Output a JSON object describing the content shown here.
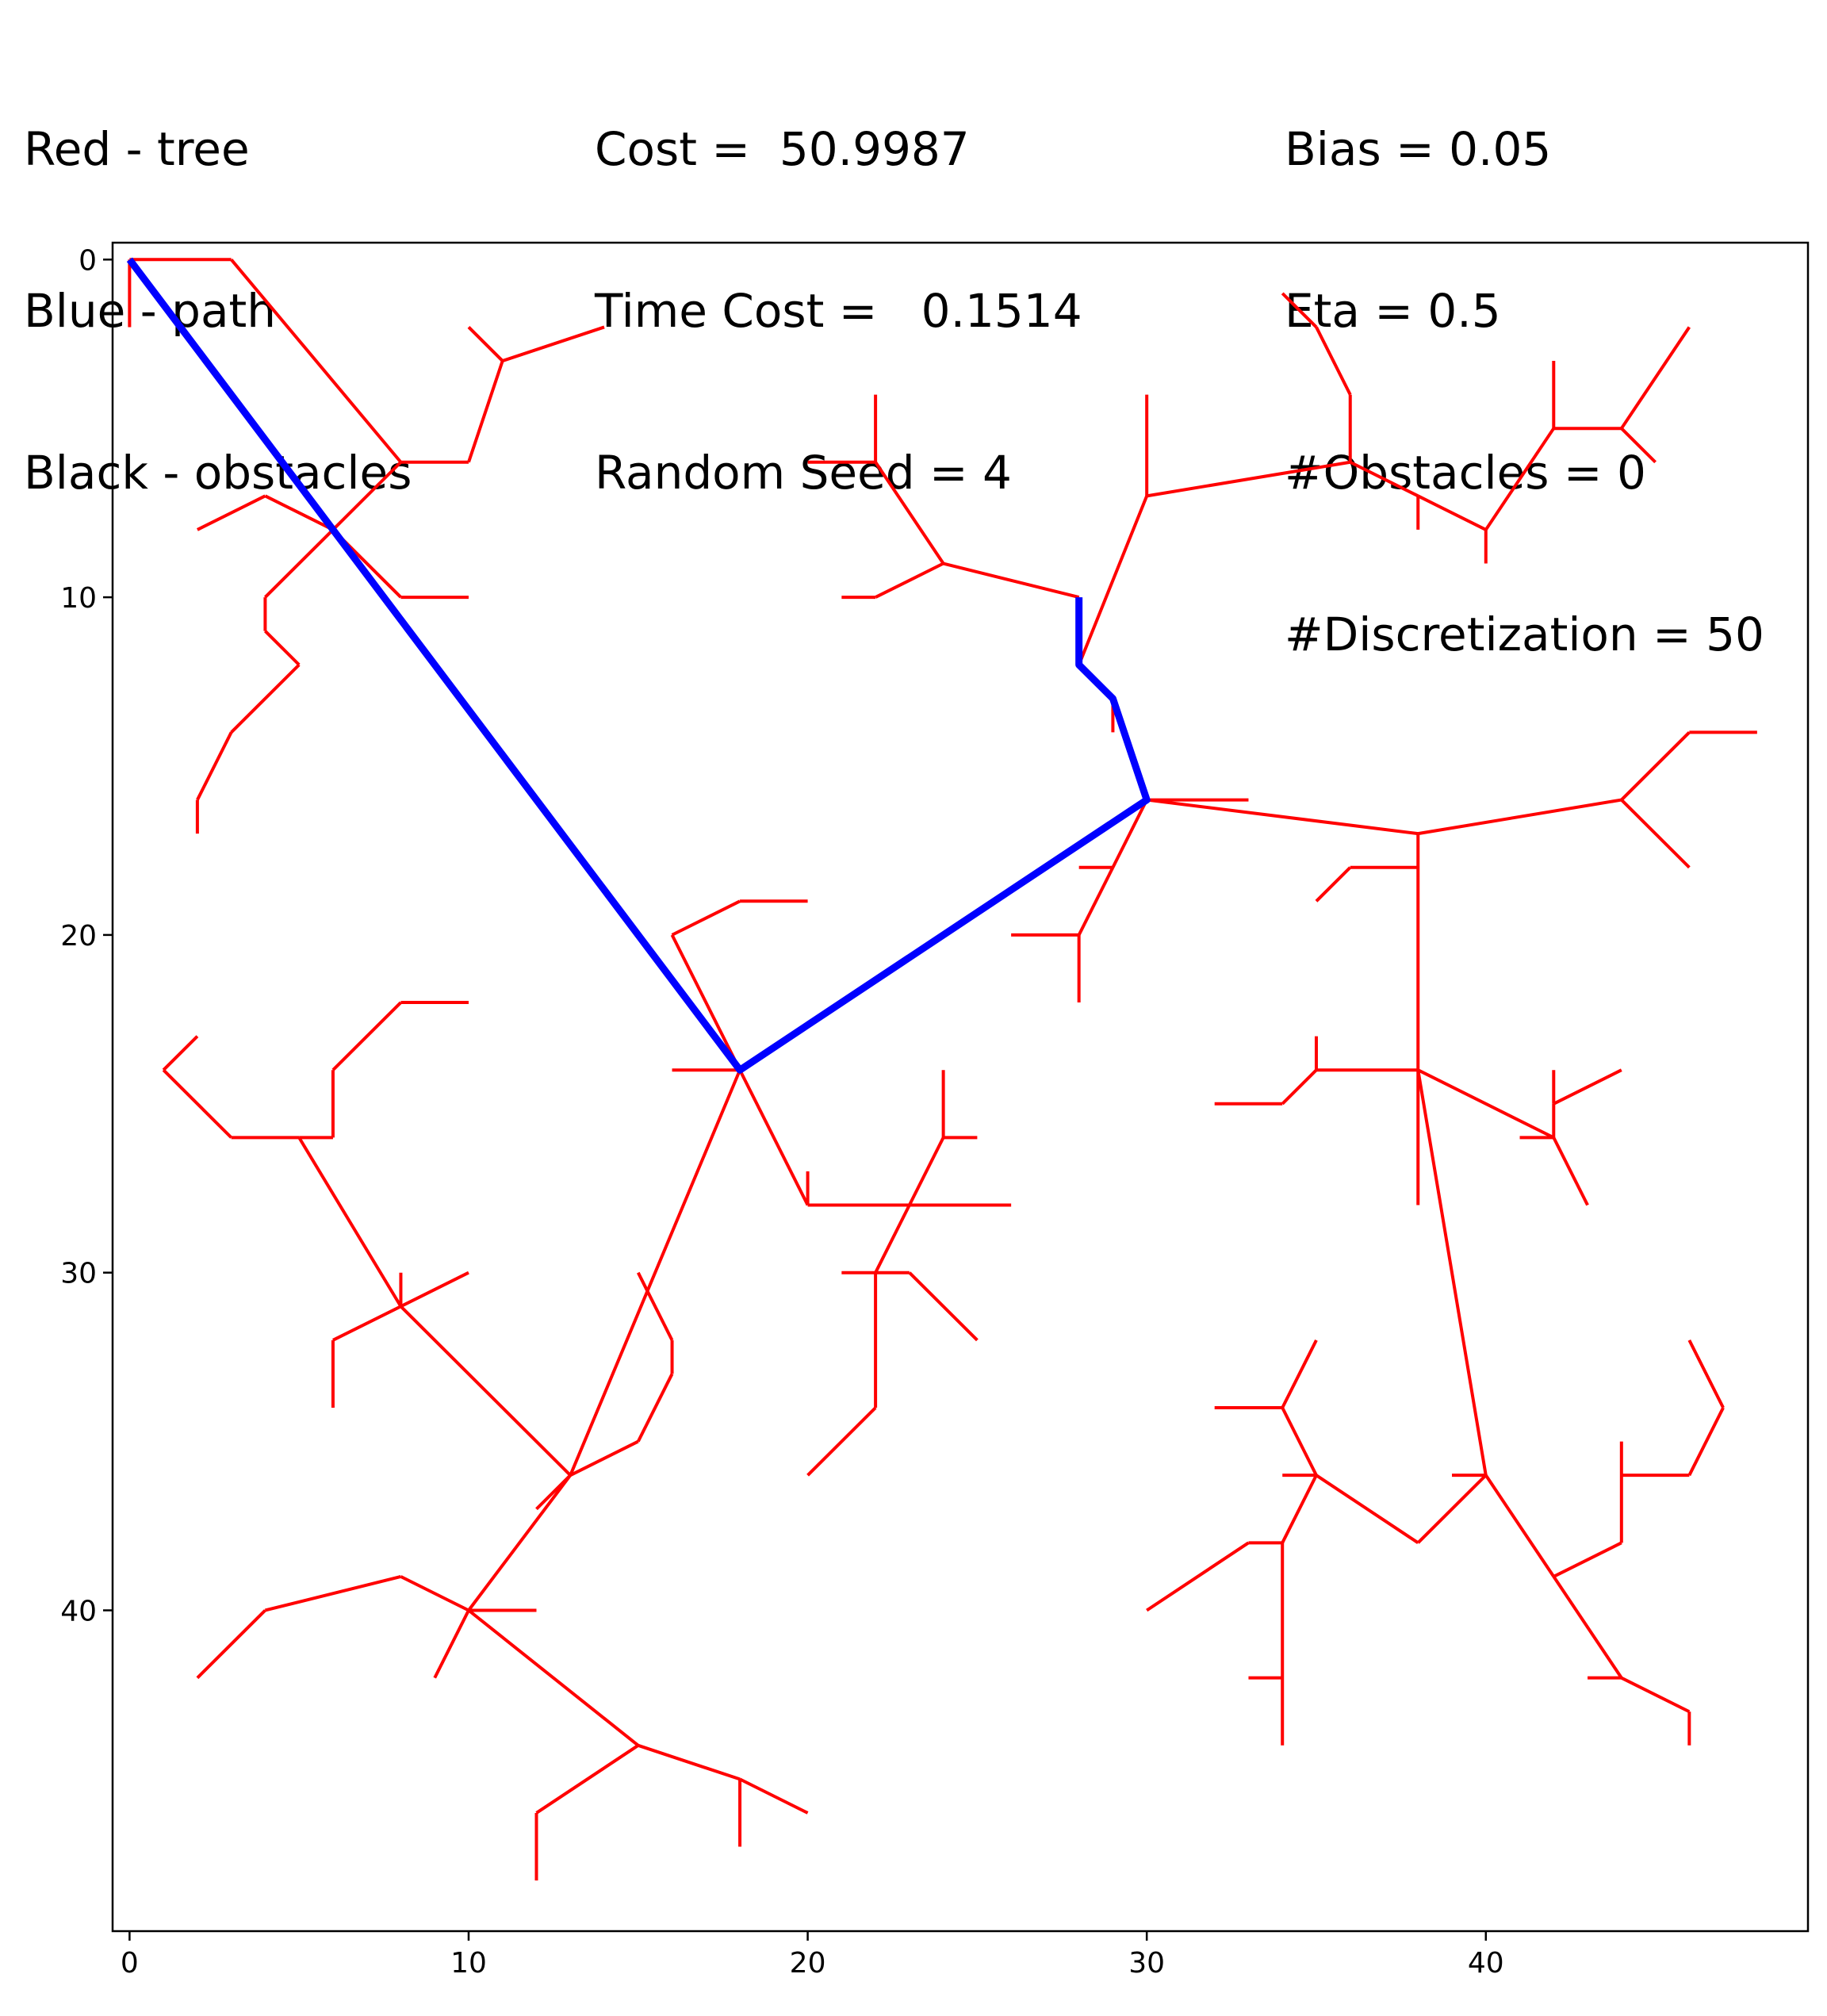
{
  "legend_text": {
    "col1": [
      "Red - tree",
      "Blue - path",
      "Black - obstacles"
    ],
    "col2": [
      "Cost =  50.9987",
      "Time Cost =   0.1514",
      "Random Seed = 4"
    ],
    "col3": [
      "Bias = 0.05",
      "Eta = 0.5",
      "#Obstacles = 0",
      "#Discretization = 50"
    ]
  },
  "colors": {
    "tree": "#ff0000",
    "path": "#0000ff",
    "obstacles": "#000000"
  },
  "chart_data": {
    "type": "line",
    "xlim": [
      -0.5,
      49.5
    ],
    "ylim": [
      -0.5,
      49.5
    ],
    "y_inverted": true,
    "grid": false,
    "x_ticks": [
      0,
      10,
      20,
      30,
      40
    ],
    "y_ticks": [
      0,
      10,
      20,
      30,
      40
    ],
    "path": [
      [
        0,
        0
      ],
      [
        6,
        8
      ],
      [
        18,
        24
      ],
      [
        30,
        16
      ],
      [
        29,
        13
      ],
      [
        28,
        12
      ],
      [
        28,
        10
      ]
    ],
    "tree_edges": [
      [
        [
          0,
          0
        ],
        [
          0,
          2
        ]
      ],
      [
        [
          0,
          0
        ],
        [
          3,
          0
        ]
      ],
      [
        [
          3,
          0
        ],
        [
          8,
          6
        ]
      ],
      [
        [
          8,
          6
        ],
        [
          10,
          6
        ]
      ],
      [
        [
          10,
          6
        ],
        [
          11,
          3
        ]
      ],
      [
        [
          11,
          3
        ],
        [
          10,
          2
        ]
      ],
      [
        [
          11,
          3
        ],
        [
          14,
          2
        ]
      ],
      [
        [
          8,
          6
        ],
        [
          6,
          8
        ]
      ],
      [
        [
          6,
          8
        ],
        [
          4,
          7
        ]
      ],
      [
        [
          4,
          7
        ],
        [
          2,
          8
        ]
      ],
      [
        [
          6,
          8
        ],
        [
          8,
          10
        ]
      ],
      [
        [
          8,
          10
        ],
        [
          10,
          10
        ]
      ],
      [
        [
          6,
          8
        ],
        [
          4,
          10
        ]
      ],
      [
        [
          4,
          10
        ],
        [
          4,
          11
        ]
      ],
      [
        [
          4,
          11
        ],
        [
          5,
          12
        ]
      ],
      [
        [
          5,
          12
        ],
        [
          3,
          14
        ]
      ],
      [
        [
          3,
          14
        ],
        [
          2,
          16
        ]
      ],
      [
        [
          2,
          16
        ],
        [
          2,
          17
        ]
      ],
      [
        [
          6,
          8
        ],
        [
          18,
          24
        ]
      ],
      [
        [
          18,
          24
        ],
        [
          16,
          24
        ]
      ],
      [
        [
          18,
          24
        ],
        [
          16,
          20
        ]
      ],
      [
        [
          16,
          20
        ],
        [
          18,
          19
        ]
      ],
      [
        [
          18,
          19
        ],
        [
          20,
          19
        ]
      ],
      [
        [
          18,
          24
        ],
        [
          20,
          28
        ]
      ],
      [
        [
          20,
          28
        ],
        [
          20,
          27
        ]
      ],
      [
        [
          20,
          28
        ],
        [
          26,
          28
        ]
      ],
      [
        [
          23,
          28
        ],
        [
          24,
          26
        ]
      ],
      [
        [
          24,
          26
        ],
        [
          24,
          24
        ]
      ],
      [
        [
          24,
          26
        ],
        [
          25,
          26
        ]
      ],
      [
        [
          23,
          28
        ],
        [
          22,
          30
        ]
      ],
      [
        [
          22,
          30
        ],
        [
          21,
          30
        ]
      ],
      [
        [
          22,
          30
        ],
        [
          23,
          30
        ]
      ],
      [
        [
          23,
          30
        ],
        [
          25,
          32
        ]
      ],
      [
        [
          22,
          30
        ],
        [
          22,
          34
        ]
      ],
      [
        [
          22,
          34
        ],
        [
          20,
          36
        ]
      ],
      [
        [
          18,
          24
        ],
        [
          13,
          36
        ]
      ],
      [
        [
          13,
          36
        ],
        [
          12,
          37
        ]
      ],
      [
        [
          13,
          36
        ],
        [
          8,
          31
        ]
      ],
      [
        [
          8,
          31
        ],
        [
          8,
          30
        ]
      ],
      [
        [
          8,
          31
        ],
        [
          10,
          30
        ]
      ],
      [
        [
          8,
          31
        ],
        [
          6,
          32
        ]
      ],
      [
        [
          6,
          32
        ],
        [
          6,
          34
        ]
      ],
      [
        [
          8,
          31
        ],
        [
          5,
          26
        ]
      ],
      [
        [
          5,
          26
        ],
        [
          3,
          26
        ]
      ],
      [
        [
          3,
          26
        ],
        [
          1,
          24
        ]
      ],
      [
        [
          1,
          24
        ],
        [
          2,
          23
        ]
      ],
      [
        [
          5,
          26
        ],
        [
          6,
          26
        ]
      ],
      [
        [
          6,
          26
        ],
        [
          6,
          24
        ]
      ],
      [
        [
          6,
          24
        ],
        [
          8,
          22
        ]
      ],
      [
        [
          8,
          22
        ],
        [
          10,
          22
        ]
      ],
      [
        [
          13,
          36
        ],
        [
          15,
          35
        ]
      ],
      [
        [
          15,
          35
        ],
        [
          16,
          33
        ]
      ],
      [
        [
          16,
          33
        ],
        [
          16,
          32
        ]
      ],
      [
        [
          16,
          32
        ],
        [
          15,
          30
        ]
      ],
      [
        [
          13,
          36
        ],
        [
          10,
          40
        ]
      ],
      [
        [
          10,
          40
        ],
        [
          12,
          40
        ]
      ],
      [
        [
          10,
          40
        ],
        [
          9,
          42
        ]
      ],
      [
        [
          10,
          40
        ],
        [
          8,
          39
        ]
      ],
      [
        [
          8,
          39
        ],
        [
          4,
          40
        ]
      ],
      [
        [
          4,
          40
        ],
        [
          2,
          42
        ]
      ],
      [
        [
          10,
          40
        ],
        [
          15,
          44
        ]
      ],
      [
        [
          15,
          44
        ],
        [
          12,
          46
        ]
      ],
      [
        [
          12,
          46
        ],
        [
          12,
          48
        ]
      ],
      [
        [
          15,
          44
        ],
        [
          18,
          45
        ]
      ],
      [
        [
          18,
          45
        ],
        [
          18,
          47
        ]
      ],
      [
        [
          18,
          45
        ],
        [
          20,
          46
        ]
      ],
      [
        [
          18,
          24
        ],
        [
          30,
          16
        ]
      ],
      [
        [
          30,
          16
        ],
        [
          29,
          18
        ]
      ],
      [
        [
          29,
          18
        ],
        [
          28,
          18
        ]
      ],
      [
        [
          29,
          18
        ],
        [
          28,
          20
        ]
      ],
      [
        [
          28,
          20
        ],
        [
          26,
          20
        ]
      ],
      [
        [
          28,
          20
        ],
        [
          28,
          22
        ]
      ],
      [
        [
          30,
          16
        ],
        [
          33,
          16
        ]
      ],
      [
        [
          30,
          16
        ],
        [
          29,
          13
        ]
      ],
      [
        [
          29,
          13
        ],
        [
          29,
          14
        ]
      ],
      [
        [
          29,
          13
        ],
        [
          28,
          12
        ]
      ],
      [
        [
          28,
          12
        ],
        [
          28,
          10
        ]
      ],
      [
        [
          28,
          12
        ],
        [
          30,
          7
        ]
      ],
      [
        [
          30,
          7
        ],
        [
          30,
          4
        ]
      ],
      [
        [
          30,
          7
        ],
        [
          36,
          6
        ]
      ],
      [
        [
          36,
          6
        ],
        [
          36,
          4
        ]
      ],
      [
        [
          36,
          4
        ],
        [
          35,
          2
        ]
      ],
      [
        [
          35,
          2
        ],
        [
          34,
          1
        ]
      ],
      [
        [
          36,
          6
        ],
        [
          38,
          7
        ]
      ],
      [
        [
          38,
          7
        ],
        [
          38,
          8
        ]
      ],
      [
        [
          38,
          7
        ],
        [
          40,
          8
        ]
      ],
      [
        [
          40,
          8
        ],
        [
          40,
          9
        ]
      ],
      [
        [
          40,
          8
        ],
        [
          42,
          5
        ]
      ],
      [
        [
          42,
          5
        ],
        [
          42,
          3
        ]
      ],
      [
        [
          42,
          5
        ],
        [
          44,
          5
        ]
      ],
      [
        [
          44,
          5
        ],
        [
          45,
          6
        ]
      ],
      [
        [
          44,
          5
        ],
        [
          46,
          2
        ]
      ],
      [
        [
          28,
          10
        ],
        [
          24,
          9
        ]
      ],
      [
        [
          24,
          9
        ],
        [
          22,
          6
        ]
      ],
      [
        [
          22,
          6
        ],
        [
          20,
          6
        ]
      ],
      [
        [
          22,
          6
        ],
        [
          22,
          4
        ]
      ],
      [
        [
          24,
          9
        ],
        [
          22,
          10
        ]
      ],
      [
        [
          22,
          10
        ],
        [
          21,
          10
        ]
      ],
      [
        [
          30,
          16
        ],
        [
          38,
          17
        ]
      ],
      [
        [
          38,
          17
        ],
        [
          44,
          16
        ]
      ],
      [
        [
          44,
          16
        ],
        [
          46,
          14
        ]
      ],
      [
        [
          46,
          14
        ],
        [
          48,
          14
        ]
      ],
      [
        [
          44,
          16
        ],
        [
          46,
          18
        ]
      ],
      [
        [
          38,
          17
        ],
        [
          38,
          28
        ]
      ],
      [
        [
          38,
          18
        ],
        [
          36,
          18
        ]
      ],
      [
        [
          36,
          18
        ],
        [
          35,
          19
        ]
      ],
      [
        [
          38,
          24
        ],
        [
          35,
          24
        ]
      ],
      [
        [
          35,
          24
        ],
        [
          35,
          23
        ]
      ],
      [
        [
          35,
          24
        ],
        [
          34,
          25
        ]
      ],
      [
        [
          34,
          25
        ],
        [
          32,
          25
        ]
      ],
      [
        [
          38,
          24
        ],
        [
          42,
          26
        ]
      ],
      [
        [
          42,
          26
        ],
        [
          41,
          26
        ]
      ],
      [
        [
          42,
          26
        ],
        [
          42,
          25
        ]
      ],
      [
        [
          42,
          25
        ],
        [
          42,
          24
        ]
      ],
      [
        [
          42,
          25
        ],
        [
          44,
          24
        ]
      ],
      [
        [
          42,
          26
        ],
        [
          43,
          28
        ]
      ],
      [
        [
          38,
          24
        ],
        [
          40,
          36
        ]
      ],
      [
        [
          40,
          36
        ],
        [
          39,
          36
        ]
      ],
      [
        [
          40,
          36
        ],
        [
          38,
          38
        ]
      ],
      [
        [
          38,
          38
        ],
        [
          35,
          36
        ]
      ],
      [
        [
          35,
          36
        ],
        [
          34,
          36
        ]
      ],
      [
        [
          35,
          36
        ],
        [
          34,
          34
        ]
      ],
      [
        [
          34,
          34
        ],
        [
          32,
          34
        ]
      ],
      [
        [
          34,
          34
        ],
        [
          35,
          32
        ]
      ],
      [
        [
          35,
          36
        ],
        [
          34,
          38
        ]
      ],
      [
        [
          34,
          38
        ],
        [
          33,
          38
        ]
      ],
      [
        [
          33,
          38
        ],
        [
          30,
          40
        ]
      ],
      [
        [
          34,
          38
        ],
        [
          34,
          44
        ]
      ],
      [
        [
          34,
          42
        ],
        [
          33,
          42
        ]
      ],
      [
        [
          40,
          36
        ],
        [
          42,
          39
        ]
      ],
      [
        [
          42,
          39
        ],
        [
          44,
          38
        ]
      ],
      [
        [
          44,
          38
        ],
        [
          44,
          35
        ]
      ],
      [
        [
          44,
          36
        ],
        [
          46,
          36
        ]
      ],
      [
        [
          46,
          36
        ],
        [
          47,
          34
        ]
      ],
      [
        [
          47,
          34
        ],
        [
          46,
          32
        ]
      ],
      [
        [
          42,
          39
        ],
        [
          44,
          42
        ]
      ],
      [
        [
          44,
          42
        ],
        [
          43,
          42
        ]
      ],
      [
        [
          44,
          42
        ],
        [
          46,
          43
        ]
      ],
      [
        [
          46,
          43
        ],
        [
          46,
          44
        ]
      ]
    ]
  }
}
